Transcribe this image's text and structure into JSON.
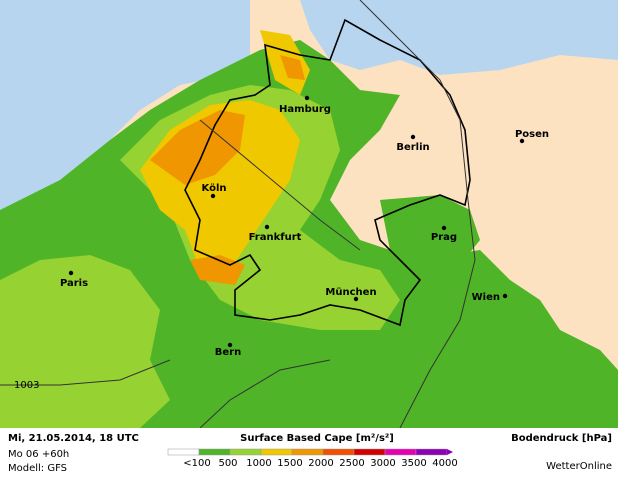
{
  "map": {
    "cities": [
      {
        "name": "Hamburg"
      },
      {
        "name": "Berlin"
      },
      {
        "name": "Posen"
      },
      {
        "name": "Köln"
      },
      {
        "name": "Frankfurt"
      },
      {
        "name": "Prag"
      },
      {
        "name": "Paris"
      },
      {
        "name": "München"
      },
      {
        "name": "Wien"
      },
      {
        "name": "Bern"
      }
    ],
    "isobar_label": "1003"
  },
  "footer": {
    "date": "Mi, 21.05.2014, 18 UTC",
    "run": "Mo 06 +60h",
    "model": "Modell: GFS",
    "legend_title": "Surface Based Cape [m²/s²]",
    "pressure_title": "Bodendruck [hPa]",
    "brand": "WetterOnline"
  },
  "legend": {
    "items": [
      {
        "label": "<100",
        "color": "#ffffff"
      },
      {
        "label": "500",
        "color": "#50b428"
      },
      {
        "label": "1000",
        "color": "#96d232"
      },
      {
        "label": "1500",
        "color": "#f0c800"
      },
      {
        "label": "2000",
        "color": "#f09600"
      },
      {
        "label": "2500",
        "color": "#f05000"
      },
      {
        "label": "3000",
        "color": "#d20000"
      },
      {
        "label": "3500",
        "color": "#e600b4"
      },
      {
        "label": "4000",
        "color": "#8c00b4"
      }
    ]
  }
}
